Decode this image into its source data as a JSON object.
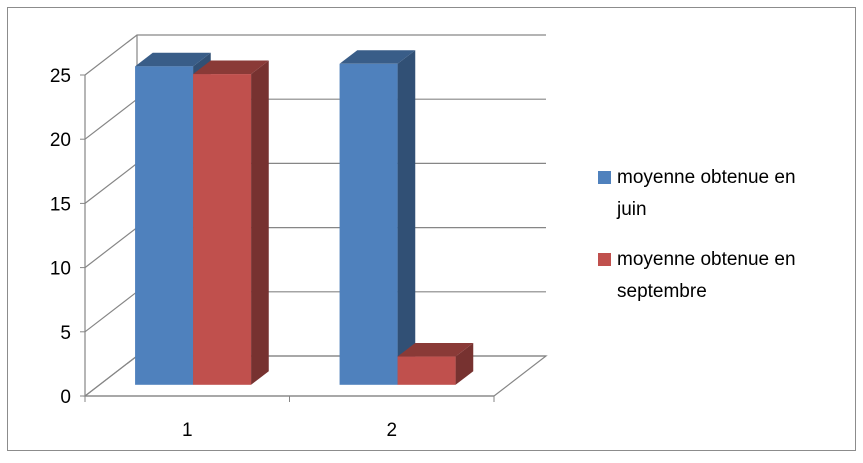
{
  "chart_data": {
    "type": "bar",
    "title": "",
    "xlabel": "",
    "ylabel": "",
    "categories": [
      "1",
      "2"
    ],
    "ylim": [
      0,
      25
    ],
    "yticks": [
      0,
      5,
      10,
      15,
      20,
      25
    ],
    "grid": true,
    "legend_position": "right",
    "series": [
      {
        "name": "moyenne obtenue en juin",
        "values": [
          24.8,
          25
        ],
        "color": "#4F81BD"
      },
      {
        "name": "moyenne obtenue en septembre",
        "values": [
          24.2,
          2.2
        ],
        "color": "#C0504D"
      }
    ]
  }
}
